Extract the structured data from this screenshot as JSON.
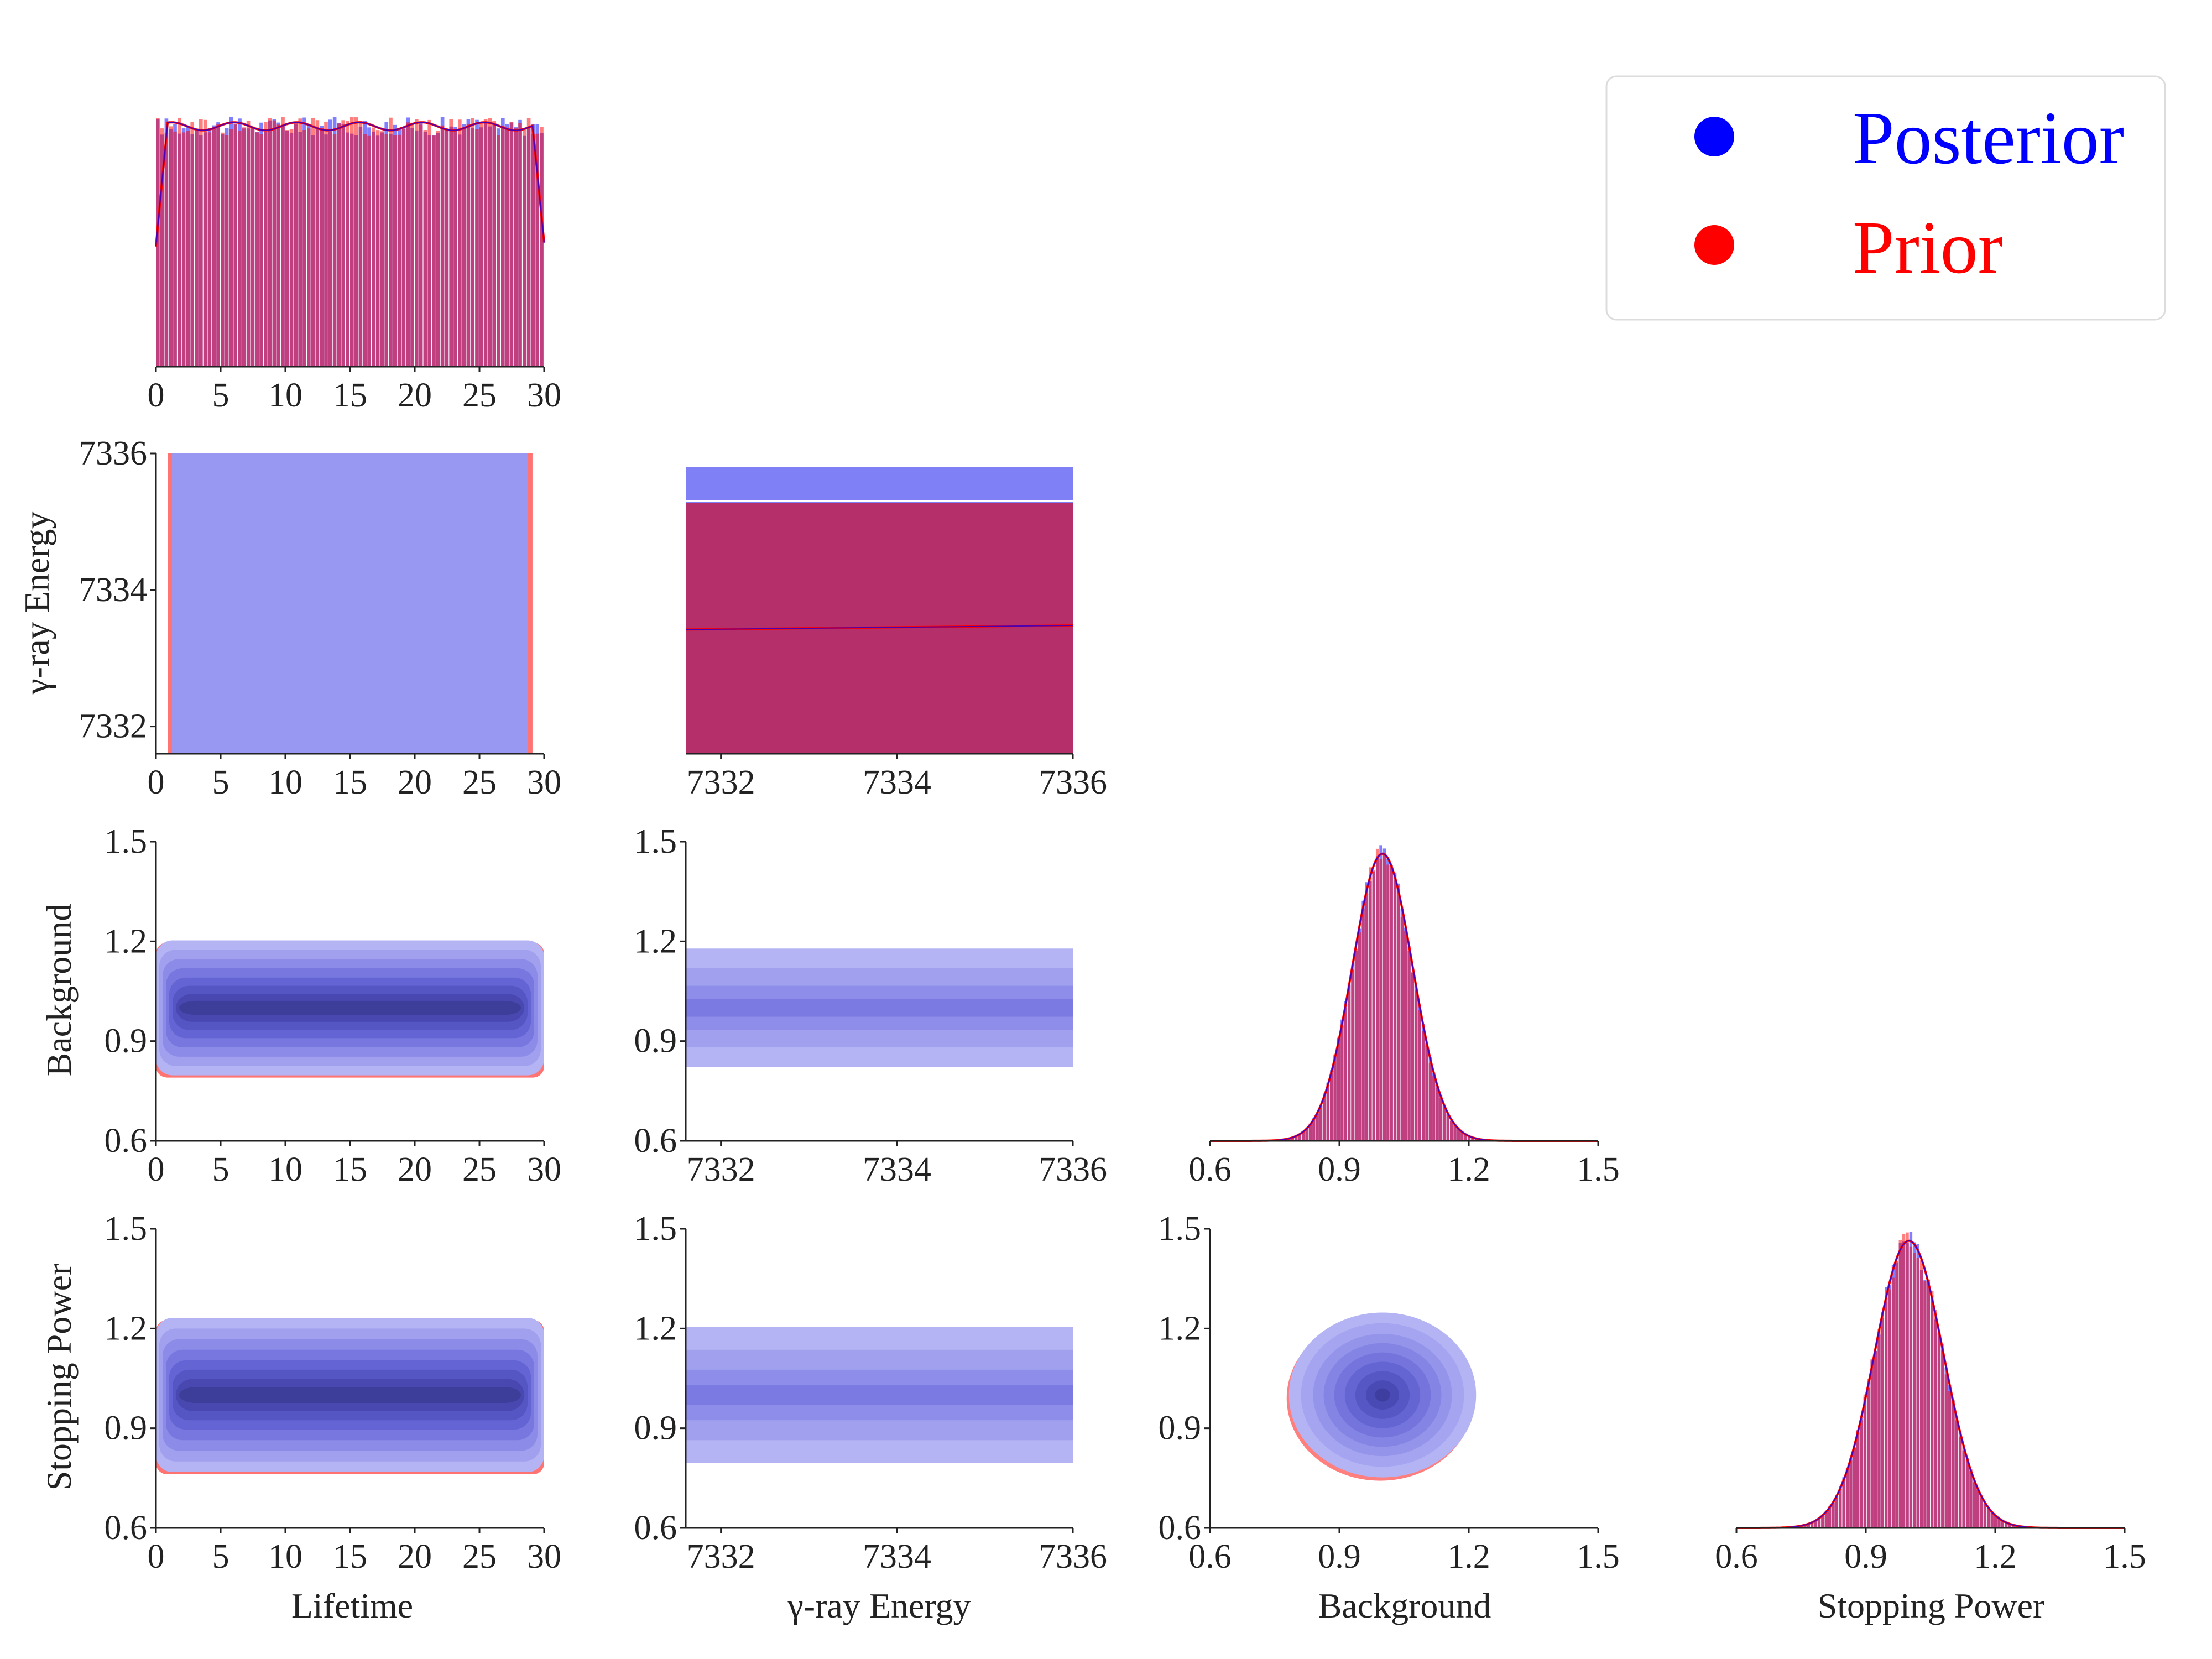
{
  "chart_data": {
    "type": "corner-plot",
    "grid": false,
    "legend_placement": "top-right",
    "legend": [
      {
        "label": "Posterior",
        "color": "#0000ff"
      },
      {
        "label": "Prior",
        "color": "#ff0000"
      }
    ],
    "colors": {
      "posterior": "#0000ff",
      "prior": "#ff0000",
      "overlap": "#b5306a"
    },
    "params": [
      {
        "name": "Lifetime",
        "range": [
          0,
          30
        ],
        "ticks": [
          "0",
          "5",
          "10",
          "15",
          "20",
          "25",
          "30"
        ],
        "distribution": "uniform"
      },
      {
        "name": "γ-ray Energy",
        "range": [
          7331.6,
          7336
        ],
        "ticks": [
          "7332",
          "7334",
          "7336"
        ],
        "distribution": "uniform"
      },
      {
        "name": "Background",
        "range": [
          0.6,
          1.5
        ],
        "ticks": [
          "0.6",
          "0.9",
          "1.2",
          "1.5"
        ],
        "distribution": "normal",
        "mean": 1.0,
        "sd": 0.07
      },
      {
        "name": "Stopping Power",
        "range": [
          0.6,
          1.5
        ],
        "ticks": [
          "0.6",
          "0.9",
          "1.2",
          "1.5"
        ],
        "distribution": "normal",
        "mean": 1.0,
        "sd": 0.08
      }
    ],
    "row_labels": [
      "",
      "γ-ray Energy",
      "Background",
      "Stopping Power"
    ],
    "col_labels": [
      "Lifetime",
      "γ-ray Energy",
      "Background",
      "Stopping Power"
    ]
  }
}
